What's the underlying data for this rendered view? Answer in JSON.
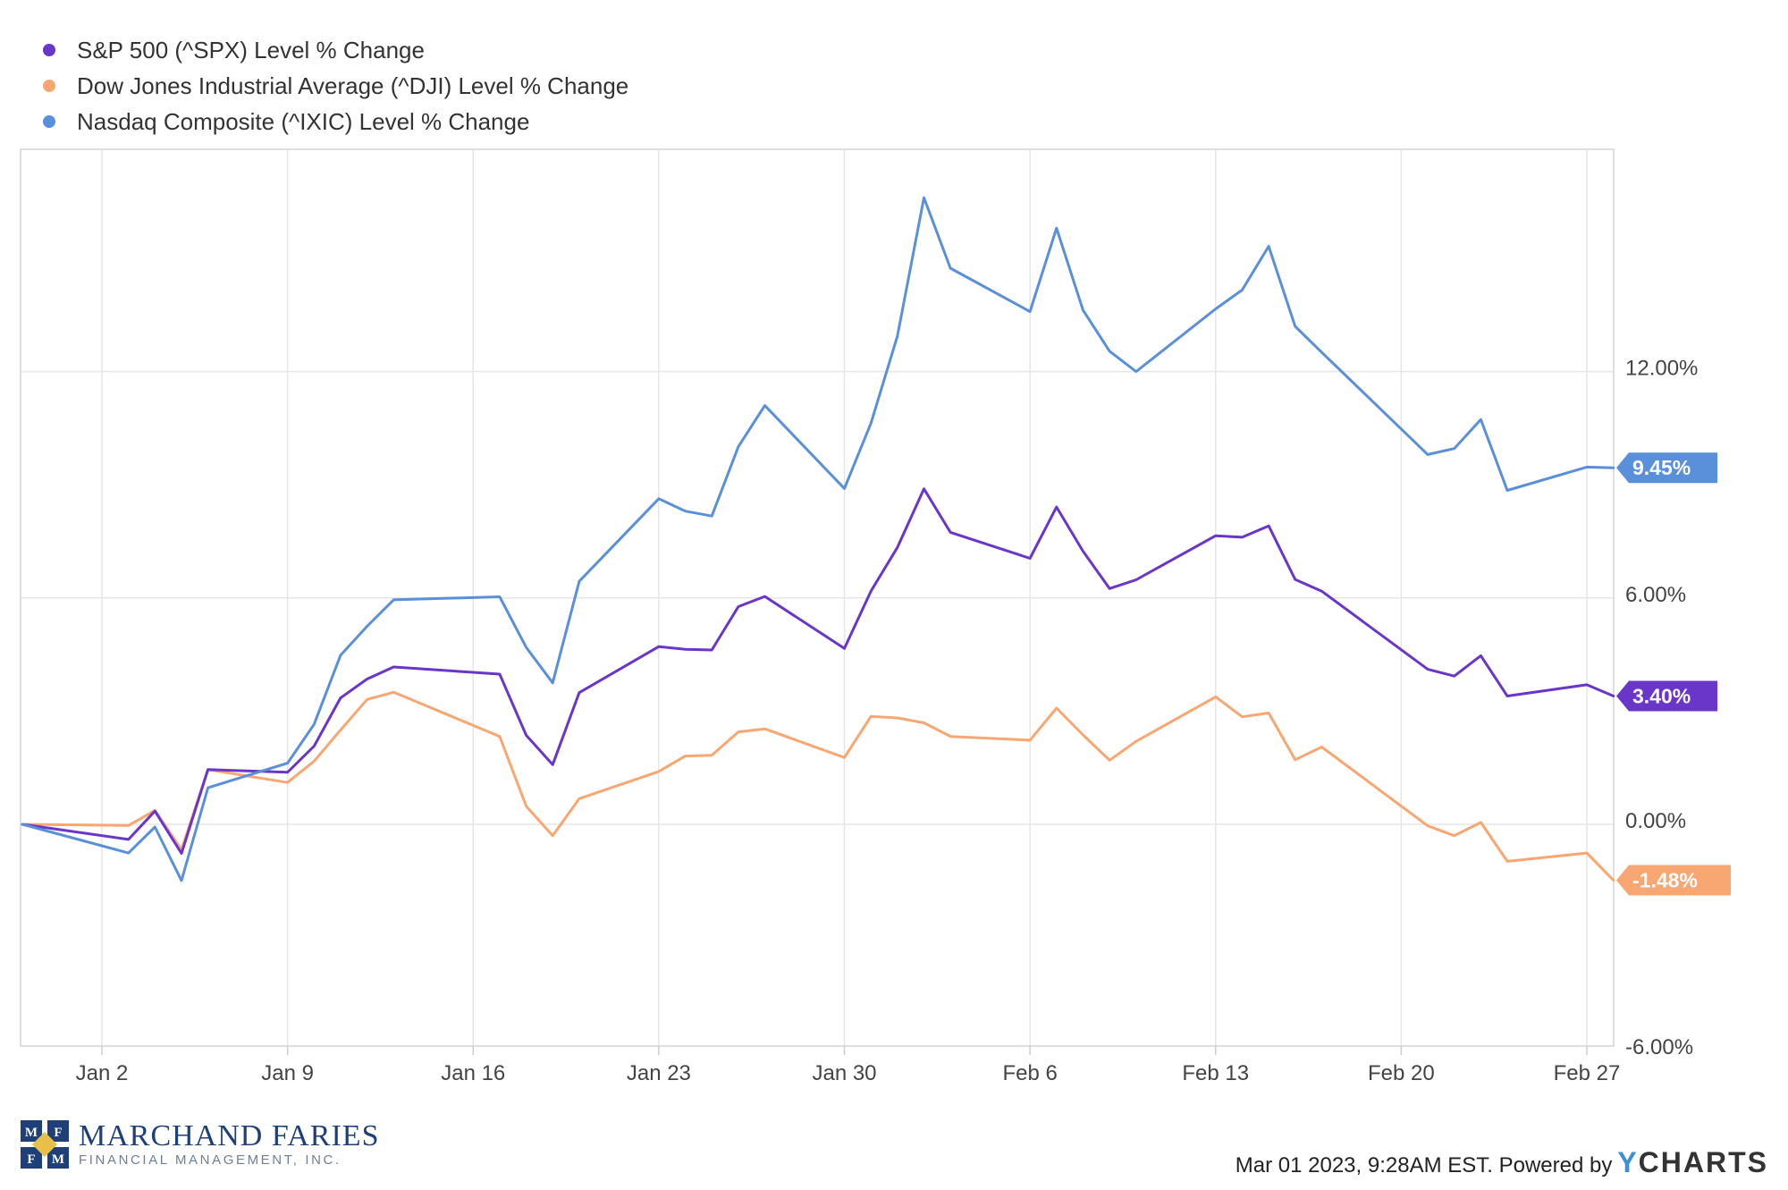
{
  "legend": [
    {
      "label": "S&P 500 (^SPX) Level % Change",
      "color": "#6a35c9"
    },
    {
      "label": "Dow Jones Industrial Average (^DJI) Level % Change",
      "color": "#f8a672"
    },
    {
      "label": "Nasdaq Composite (^IXIC) Level % Change",
      "color": "#5a8fd9"
    }
  ],
  "chart_data": {
    "type": "line",
    "x_tick_labels": [
      "Jan 2",
      "Jan 9",
      "Jan 16",
      "Jan 23",
      "Jan 30",
      "Feb 6",
      "Feb 13",
      "Feb 20",
      "Feb 27"
    ],
    "y_tick_labels": [
      "12.00%",
      "6.00%",
      "0.00%",
      "-6.00%"
    ],
    "y_ticks": [
      12,
      6,
      0,
      -6
    ],
    "ylim": [
      -6,
      18
    ],
    "grid": true,
    "legend_position": "top-left",
    "x": [
      "2022-12-30",
      "2023-01-03",
      "2023-01-04",
      "2023-01-05",
      "2023-01-06",
      "2023-01-09",
      "2023-01-10",
      "2023-01-11",
      "2023-01-12",
      "2023-01-13",
      "2023-01-17",
      "2023-01-18",
      "2023-01-19",
      "2023-01-20",
      "2023-01-23",
      "2023-01-24",
      "2023-01-25",
      "2023-01-26",
      "2023-01-27",
      "2023-01-30",
      "2023-01-31",
      "2023-02-01",
      "2023-02-02",
      "2023-02-03",
      "2023-02-06",
      "2023-02-07",
      "2023-02-08",
      "2023-02-09",
      "2023-02-10",
      "2023-02-13",
      "2023-02-14",
      "2023-02-15",
      "2023-02-16",
      "2023-02-17",
      "2023-02-21",
      "2023-02-22",
      "2023-02-23",
      "2023-02-24",
      "2023-02-27",
      "2023-02-28"
    ],
    "series": [
      {
        "name": "S&P 500 (^SPX) Level % Change",
        "color": "#6a35c9",
        "last_label": "3.40%",
        "values": [
          0,
          -0.4,
          0.35,
          -0.77,
          1.45,
          1.38,
          2.07,
          3.35,
          3.85,
          4.17,
          3.98,
          2.36,
          1.58,
          3.49,
          4.71,
          4.64,
          4.62,
          5.77,
          6.04,
          4.66,
          6.18,
          7.34,
          8.89,
          7.74,
          7.05,
          8.41,
          7.24,
          6.25,
          6.48,
          7.65,
          7.61,
          7.91,
          6.49,
          6.18,
          4.11,
          3.93,
          4.47,
          3.4,
          3.7,
          3.4
        ]
      },
      {
        "name": "Dow Jones Industrial Average (^DJI) Level % Change",
        "color": "#f8a672",
        "last_label": "-1.48%",
        "values": [
          0,
          -0.03,
          0.37,
          -0.67,
          1.45,
          1.11,
          1.67,
          2.5,
          3.31,
          3.5,
          2.33,
          0.48,
          -0.3,
          0.68,
          1.4,
          1.81,
          1.83,
          2.45,
          2.53,
          1.77,
          2.86,
          2.82,
          2.69,
          2.33,
          2.23,
          3.08,
          2.37,
          1.7,
          2.2,
          3.38,
          2.85,
          2.95,
          1.71,
          2.05,
          -0.04,
          -0.3,
          0.05,
          -0.98,
          -0.76,
          -1.48
        ]
      },
      {
        "name": "Nasdaq Composite (^IXIC) Level % Change",
        "color": "#5a8fd9",
        "last_label": "9.45%",
        "values": [
          0,
          -0.76,
          -0.07,
          -1.49,
          0.97,
          1.62,
          2.65,
          4.48,
          5.25,
          5.95,
          6.03,
          4.69,
          3.75,
          6.44,
          8.63,
          8.3,
          8.17,
          10.01,
          11.1,
          8.9,
          10.63,
          12.94,
          16.61,
          14.74,
          13.59,
          15.8,
          13.63,
          12.54,
          12.0,
          13.66,
          14.16,
          15.32,
          13.2,
          12.51,
          9.8,
          9.96,
          10.73,
          8.85,
          9.47,
          9.45
        ]
      }
    ]
  },
  "footer": {
    "logo_mark_letters": [
      "M",
      "F",
      "F",
      "M"
    ],
    "logo_name": "MARCHAND FARIES",
    "logo_subtitle": "FINANCIAL MANAGEMENT, INC.",
    "credit_text": "Mar 01 2023, 9:28AM EST. Powered by",
    "brand_y": "Y",
    "brand_rest": "CHARTS",
    "brand_color": "#3b8fd9"
  }
}
